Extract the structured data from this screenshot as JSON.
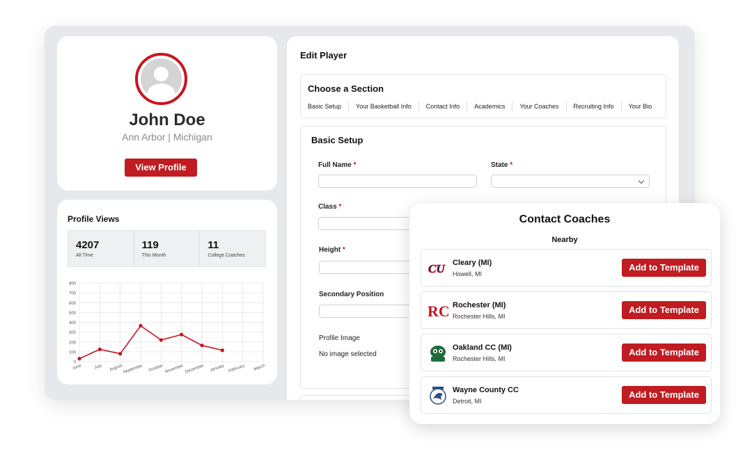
{
  "profile": {
    "name": "John Doe",
    "location": "Ann Arbor |  Michigan",
    "view_profile_label": "View Profile"
  },
  "profile_views": {
    "title": "Profile Views",
    "stats": [
      {
        "value": "4207",
        "label": "All Time"
      },
      {
        "value": "119",
        "label": "This Month"
      },
      {
        "value": "11",
        "label": "College Coaches"
      }
    ]
  },
  "chart_data": {
    "type": "line",
    "categories": [
      "June",
      "July",
      "August",
      "September",
      "October",
      "November",
      "December",
      "January",
      "February",
      "March"
    ],
    "values": [
      30,
      125,
      80,
      365,
      220,
      275,
      165,
      115,
      null,
      null
    ],
    "ylim": [
      0,
      800
    ],
    "yticks": [
      "800",
      "700",
      "600",
      "500",
      "400",
      "300",
      "200",
      "100",
      "0"
    ],
    "grid": true,
    "color": "#c8141e"
  },
  "edit_player": {
    "title": "Edit Player",
    "section_title": "Choose a Section",
    "tabs": [
      "Basic Setup",
      "Your Basketball Info",
      "Contact Info",
      "Academics",
      "Your Coaches",
      "Recruiting Info",
      "Your Bio"
    ],
    "basic_setup_title": "Basic Setup",
    "fields": {
      "full_name": "Full Name",
      "state": "State",
      "class": "Class",
      "height": "Height",
      "secondary_position": "Secondary Position",
      "profile_image": "Profile Image",
      "required_mark": "*"
    },
    "profile_image_status": "No image selected"
  },
  "contact_coaches": {
    "title": "Contact Coaches",
    "subtitle": "Nearby",
    "button_label": "Add to Template",
    "coaches": [
      {
        "name": "Cleary (MI)",
        "city": "Howell, MI",
        "logo": "cleary-logo"
      },
      {
        "name": "Rochester (MI)",
        "city": "Rochester Hills, MI",
        "logo": "rochester-logo"
      },
      {
        "name": "Oakland CC (MI)",
        "city": "Rochester Hills, MI",
        "logo": "oakland-logo"
      },
      {
        "name": "Wayne County CC",
        "city": "Detroit, MI",
        "logo": "wayne-logo"
      }
    ]
  },
  "colors": {
    "accent": "#c01c21",
    "frame": "#e6e8eb"
  }
}
